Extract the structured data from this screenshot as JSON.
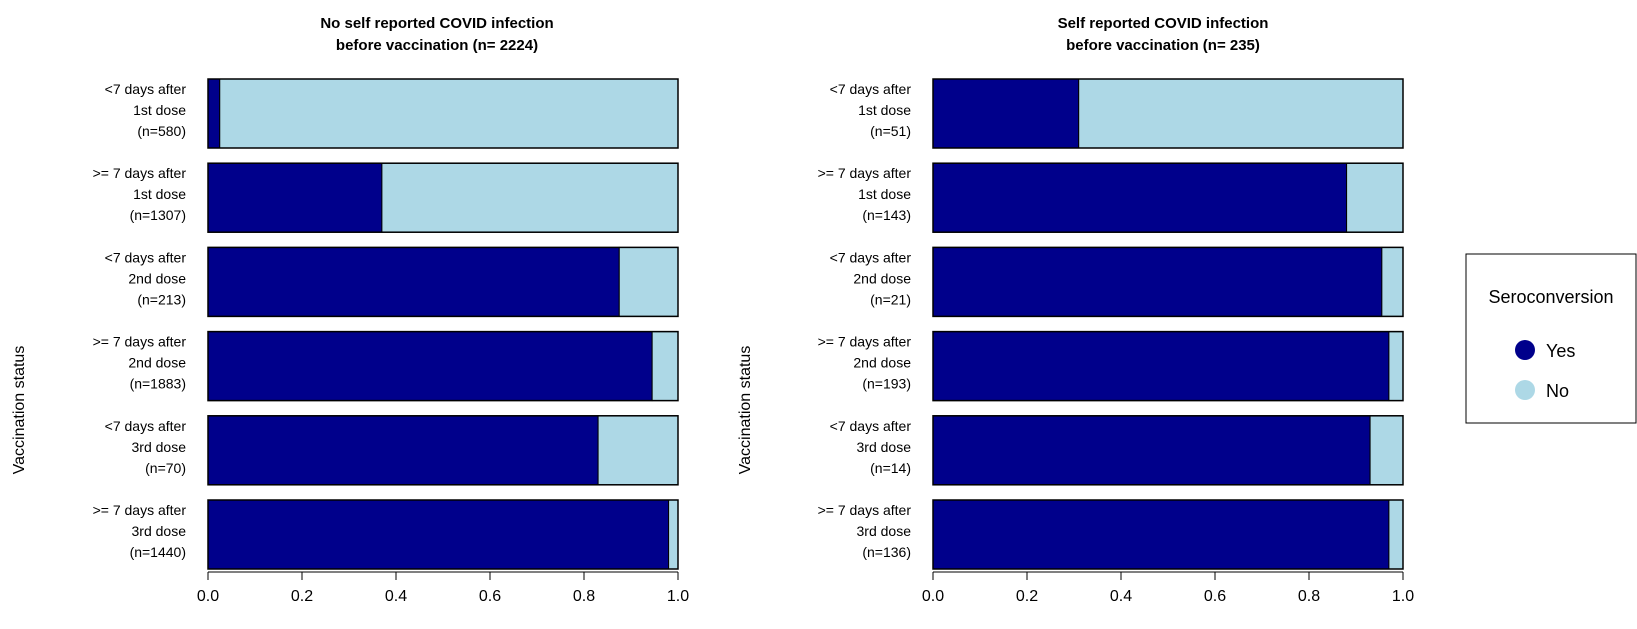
{
  "chart_data": [
    {
      "type": "bar",
      "orientation": "horizontal",
      "stacked": true,
      "title": "No self reported COVID infection\nbefore vaccination (n= 2224)",
      "ylabel": "Vaccination status",
      "xlabel": "",
      "xlim": [
        0,
        1
      ],
      "xticks": [
        "0.0",
        "0.2",
        "0.4",
        "0.6",
        "0.8",
        "1.0"
      ],
      "categories": [
        "<7 days after\n1st dose\n(n=580)",
        ">= 7 days after\n1st dose\n(n=1307)",
        "<7 days after\n2nd dose\n(n=213)",
        ">= 7 days after\n2nd dose\n(n=1883)",
        "<7 days after\n3rd dose\n(n=70)",
        ">= 7 days after\n3rd dose\n(n=1440)"
      ],
      "series": [
        {
          "name": "Yes",
          "values": [
            0.025,
            0.37,
            0.875,
            0.945,
            0.83,
            0.98
          ]
        },
        {
          "name": "No",
          "values": [
            0.975,
            0.63,
            0.125,
            0.055,
            0.17,
            0.02
          ]
        }
      ]
    },
    {
      "type": "bar",
      "orientation": "horizontal",
      "stacked": true,
      "title": "Self reported COVID infection\nbefore vaccination (n= 235)",
      "ylabel": "Vaccination status",
      "xlabel": "",
      "xlim": [
        0,
        1
      ],
      "xticks": [
        "0.0",
        "0.2",
        "0.4",
        "0.6",
        "0.8",
        "1.0"
      ],
      "categories": [
        "<7 days after\n1st dose\n(n=51)",
        ">= 7 days after\n1st dose\n(n=143)",
        "<7 days after\n2nd dose\n(n=21)",
        ">= 7 days after\n2nd dose\n(n=193)",
        "<7 days after\n3rd dose\n(n=14)",
        ">= 7 days after\n3rd dose\n(n=136)"
      ],
      "series": [
        {
          "name": "Yes",
          "values": [
            0.31,
            0.88,
            0.955,
            0.97,
            0.93,
            0.97
          ]
        },
        {
          "name": "No",
          "values": [
            0.69,
            0.12,
            0.045,
            0.03,
            0.07,
            0.03
          ]
        }
      ]
    }
  ],
  "legend": {
    "title": "Seroconversion",
    "placement": "right",
    "items": [
      {
        "label": "Yes",
        "color": "#00008b"
      },
      {
        "label": "No",
        "color": "#add8e6"
      }
    ]
  },
  "colors": {
    "Yes": "#00008b",
    "No": "#add8e6"
  }
}
